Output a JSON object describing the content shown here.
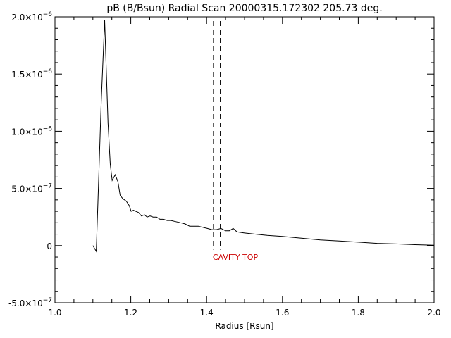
{
  "chart_data": {
    "type": "line",
    "title": "pB (B/Bsun) Radial Scan 20000315.172302 205.73 deg.",
    "xlabel": "Radius [Rsun]",
    "ylabel": "",
    "xlim": [
      1.0,
      2.0
    ],
    "ylim": [
      -5e-07,
      2e-06
    ],
    "x_ticks": [
      {
        "value": 1.0,
        "label": "1.0"
      },
      {
        "value": 1.2,
        "label": "1.2"
      },
      {
        "value": 1.4,
        "label": "1.4"
      },
      {
        "value": 1.6,
        "label": "1.6"
      },
      {
        "value": 1.8,
        "label": "1.8"
      },
      {
        "value": 2.0,
        "label": "2.0"
      }
    ],
    "y_ticks": [
      {
        "value": -5e-07,
        "mantissa": "-5.0×10",
        "exponent": "−7"
      },
      {
        "value": 0,
        "mantissa": "0",
        "exponent": ""
      },
      {
        "value": 5e-07,
        "mantissa": "5.0×10",
        "exponent": "−7"
      },
      {
        "value": 1e-06,
        "mantissa": "1.0×10",
        "exponent": "−6"
      },
      {
        "value": 1.5e-06,
        "mantissa": "1.5×10",
        "exponent": "−6"
      },
      {
        "value": 2e-06,
        "mantissa": "2.0×10",
        "exponent": "−6"
      }
    ],
    "grid": false,
    "legend": "none",
    "series": [
      {
        "color": "#000000",
        "x": [
          1.1,
          1.109,
          1.113,
          1.122,
          1.131,
          1.14,
          1.146,
          1.151,
          1.159,
          1.166,
          1.172,
          1.179,
          1.188,
          1.196,
          1.201,
          1.207,
          1.213,
          1.22,
          1.228,
          1.236,
          1.243,
          1.251,
          1.259,
          1.268,
          1.277,
          1.286,
          1.296,
          1.306,
          1.318,
          1.331,
          1.343,
          1.355,
          1.367,
          1.378,
          1.39,
          1.402,
          1.414,
          1.426,
          1.438,
          1.45,
          1.46,
          1.47,
          1.48,
          1.5,
          1.53,
          1.56,
          1.6,
          1.65,
          1.7,
          1.75,
          1.8,
          1.85,
          1.9,
          1.95,
          2.0
        ],
        "y": [
          0.0,
          -5e-08,
          3.5e-07,
          1.25e-06,
          1.97e-06,
          1.07e-06,
          7.1e-07,
          5.7e-07,
          6.2e-07,
          5.6e-07,
          4.4e-07,
          4.1e-07,
          3.9e-07,
          3.5e-07,
          3e-07,
          3.1e-07,
          3e-07,
          2.9e-07,
          2.6e-07,
          2.7e-07,
          2.5e-07,
          2.6e-07,
          2.5e-07,
          2.5e-07,
          2.3e-07,
          2.3e-07,
          2.2e-07,
          2.2e-07,
          2.1e-07,
          2e-07,
          1.9e-07,
          1.7e-07,
          1.7e-07,
          1.7e-07,
          1.6e-07,
          1.5e-07,
          1.4e-07,
          1.4e-07,
          1.5e-07,
          1.3e-07,
          1.3e-07,
          1.5e-07,
          1.2e-07,
          1.1e-07,
          1e-07,
          9e-08,
          8e-08,
          6.5e-08,
          5e-08,
          4e-08,
          3e-08,
          2e-08,
          1.5e-08,
          8e-09,
          3e-09
        ]
      }
    ],
    "vertical_lines": [
      {
        "x": 1.418,
        "style": "dashed",
        "color": "#000000"
      },
      {
        "x": 1.436,
        "style": "dashed",
        "color": "#000000"
      }
    ],
    "annotations": [
      {
        "text": "CAVITY TOP",
        "x": 1.418,
        "y": -1e-07,
        "color": "#cc0000"
      }
    ]
  }
}
